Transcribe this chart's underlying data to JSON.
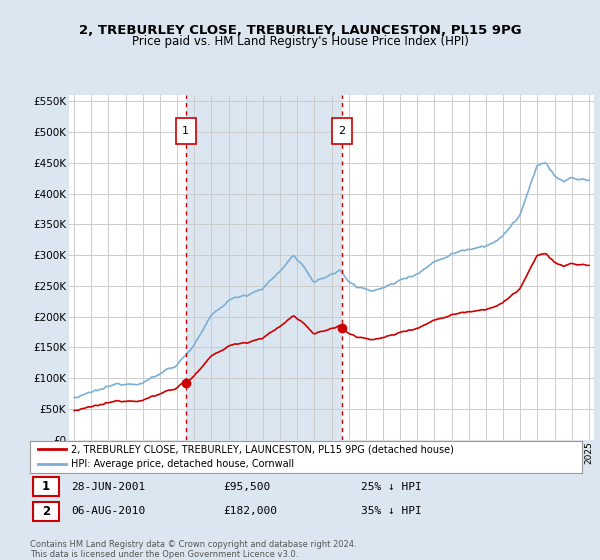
{
  "title_line1": "2, TREBURLEY CLOSE, TREBURLEY, LAUNCESTON, PL15 9PG",
  "title_line2": "Price paid vs. HM Land Registry's House Price Index (HPI)",
  "background_color": "#dce6f1",
  "plot_bg_color": "#ffffff",
  "shade_color": "#dce6f1",
  "grid_color": "#cccccc",
  "hpi_color": "#7bafd4",
  "price_color": "#cc0000",
  "vline_color": "#cc0000",
  "marker1_year": 2001.5,
  "marker2_year": 2010.6,
  "purchase1_price": 95500,
  "purchase2_price": 182000,
  "legend_entry1": "2, TREBURLEY CLOSE, TREBURLEY, LAUNCESTON, PL15 9PG (detached house)",
  "legend_entry2": "HPI: Average price, detached house, Cornwall",
  "table_row1": [
    "1",
    "28-JUN-2001",
    "£95,500",
    "25% ↓ HPI"
  ],
  "table_row2": [
    "2",
    "06-AUG-2010",
    "£182,000",
    "35% ↓ HPI"
  ],
  "footnote": "Contains HM Land Registry data © Crown copyright and database right 2024.\nThis data is licensed under the Open Government Licence v3.0."
}
